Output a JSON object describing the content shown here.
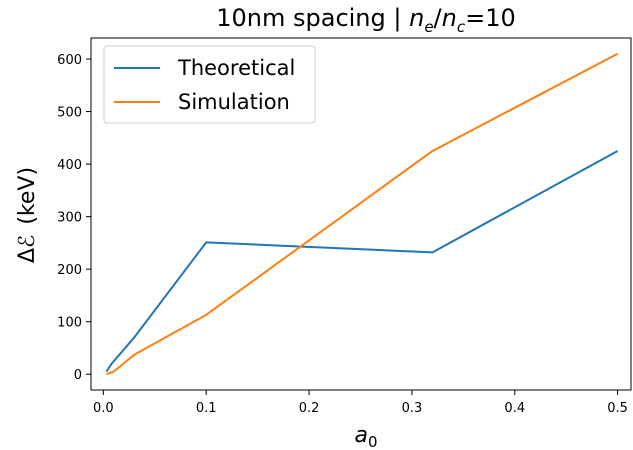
{
  "chart_data": {
    "type": "line",
    "title_text": "10nm spacing | ",
    "title_math": {
      "n1": "n",
      "s1": "e",
      "slash": "/",
      "n2": "n",
      "s2": "c",
      "eq": "=10"
    },
    "xlabel": {
      "base": "a",
      "sub": "0"
    },
    "ylabel": {
      "symbol": "Δℰ",
      "unit": "(keV)"
    },
    "xlim": [
      -0.012,
      0.513
    ],
    "ylim": [
      -30,
      640
    ],
    "xticks": [
      0.0,
      0.1,
      0.2,
      0.3,
      0.4,
      0.5
    ],
    "xtick_labels": [
      "0.0",
      "0.1",
      "0.2",
      "0.3",
      "0.4",
      "0.5"
    ],
    "yticks": [
      0,
      100,
      200,
      300,
      400,
      500,
      600
    ],
    "ytick_labels": [
      "0",
      "100",
      "200",
      "300",
      "400",
      "500",
      "600"
    ],
    "grid": false,
    "legend_position": "top-left",
    "series": [
      {
        "name": "Theoretical",
        "color": "#1f77b4",
        "x": [
          0.003,
          0.008,
          0.03,
          0.1,
          0.32,
          0.5
        ],
        "y": [
          5,
          20,
          70,
          251,
          232,
          425
        ]
      },
      {
        "name": "Simulation",
        "color": "#ff7f0e",
        "x": [
          0.003,
          0.01,
          0.03,
          0.1,
          0.32,
          0.5
        ],
        "y": [
          0,
          5,
          37,
          113,
          425,
          610
        ]
      }
    ]
  }
}
